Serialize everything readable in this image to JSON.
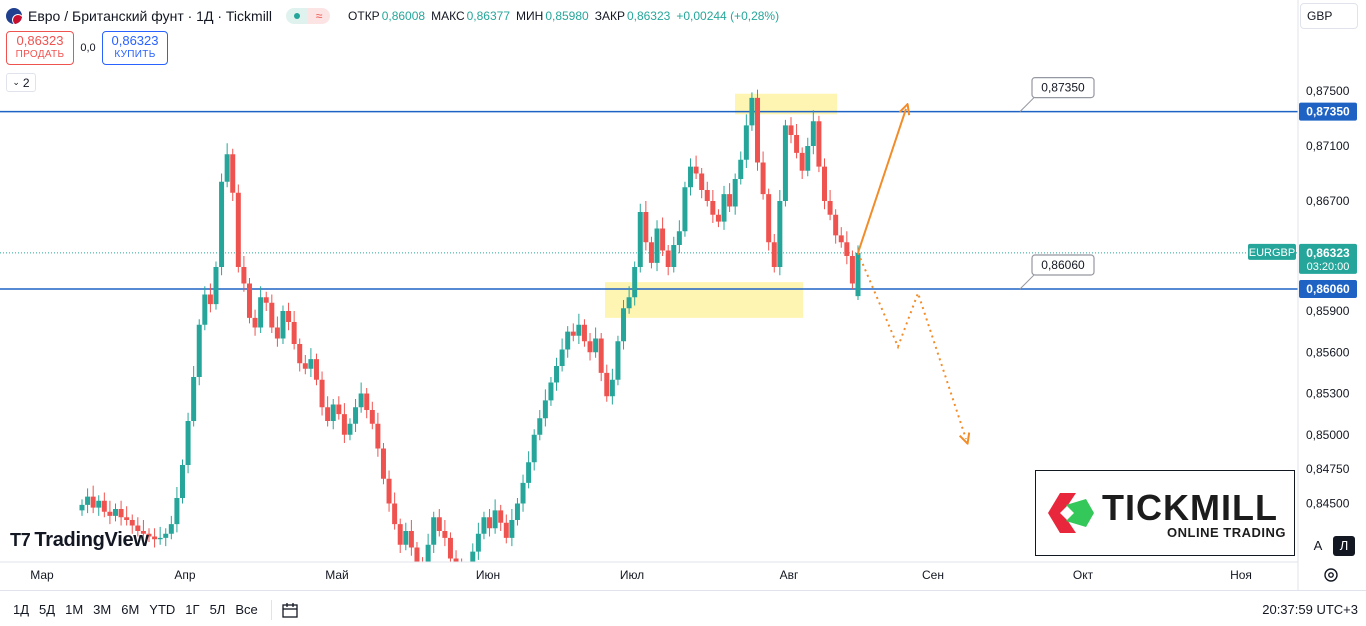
{
  "header": {
    "symbol_title": "Евро / Британский фунт · 1Д · Tickmill",
    "open_label": "ОТКР",
    "open_value": "0,86008",
    "high_label": "МАКС",
    "high_value": "0,86377",
    "low_label": "МИН",
    "low_value": "0,85980",
    "close_label": "ЗАКР",
    "close_value": "0,86323",
    "change_value": "+0,00244 (+0,28%)"
  },
  "trade": {
    "sell_price": "0,86323",
    "sell_label": "ПРОДАТЬ",
    "spread": "0,0",
    "buy_price": "0,86323",
    "buy_label": "КУПИТЬ"
  },
  "collapse_count": "2",
  "currency": "GBP",
  "watermark": "TradingView",
  "tickmill": {
    "name": "TICKMILL",
    "tagline": "ONLINE TRADING",
    "colors": [
      "#e9273c",
      "#34c759"
    ]
  },
  "scale_buttons": {
    "auto": "A",
    "log": "Л"
  },
  "timeframes": [
    "1Д",
    "5Д",
    "1М",
    "3М",
    "6М",
    "YTD",
    "1Г",
    "5Л",
    "Все"
  ],
  "clock": "20:37:59 UTC+3",
  "colors": {
    "up": "#26a69a",
    "down": "#ef5350",
    "level_line": "#1e63c4",
    "arrow": "#f28c28",
    "zone": "#fff3a6"
  },
  "chart_data": {
    "type": "candlestick",
    "symbol": "EURGBP",
    "current_price_label": "0,86323",
    "countdown": "03:20:00",
    "y_ticks": [
      "0,87500",
      "0,87100",
      "0,86700",
      "0,86323",
      "0,85900",
      "0,85600",
      "0,85300",
      "0,85000",
      "0,84750",
      "0,84500"
    ],
    "y_tick_values": [
      0.875,
      0.871,
      0.867,
      0.86323,
      0.859,
      0.856,
      0.853,
      0.85,
      0.8475,
      0.845
    ],
    "x_ticks": [
      "Мар",
      "Апр",
      "Май",
      "Июн",
      "Июл",
      "Авг",
      "Сен",
      "Окт",
      "Ноя"
    ],
    "levels": [
      {
        "value": 0.8735,
        "label": "0,87350"
      },
      {
        "value": 0.8606,
        "label": "0,86060"
      }
    ],
    "current_price": 0.86323,
    "last_candle": {
      "open": 0.86008,
      "high": 0.86377,
      "low": 0.8598,
      "close": 0.86323
    },
    "upper_zone": {
      "from": 0.8733,
      "to": 0.8748
    },
    "lower_zone": {
      "from": 0.8598,
      "to": 0.8611
    },
    "forecast_up": [
      0.86323,
      0.8737
    ],
    "forecast_down": [
      0.86323,
      0.8564,
      0.8603,
      0.8497
    ]
  }
}
